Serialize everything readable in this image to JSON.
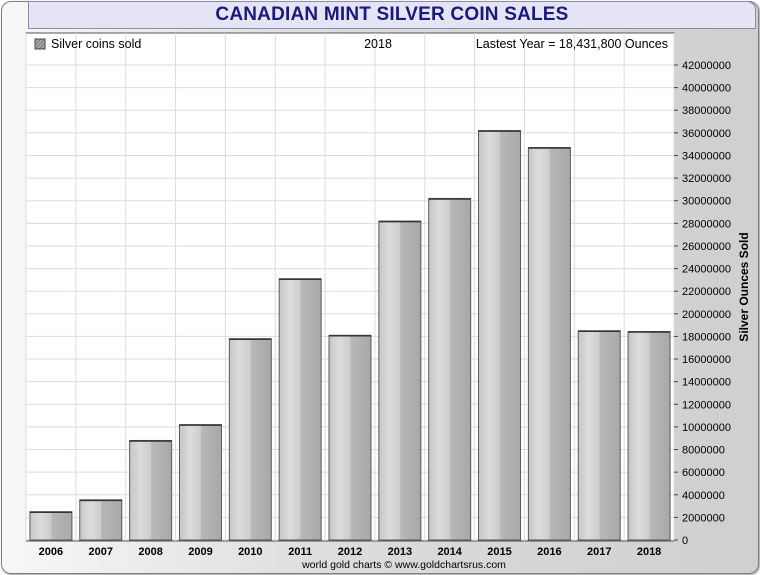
{
  "chart_data": {
    "type": "bar",
    "title": "CANADIAN MINT SILVER COIN SALES",
    "legend": "Silver coins sold",
    "header_year": "2018",
    "header_note": "Lastest Year = 18,431,800 Ounces",
    "categories": [
      "2006",
      "2007",
      "2008",
      "2009",
      "2010",
      "2011",
      "2012",
      "2013",
      "2014",
      "2015",
      "2016",
      "2017",
      "2018"
    ],
    "values": [
      2500000,
      3550000,
      8800000,
      10200000,
      17800000,
      23100000,
      18100000,
      28200000,
      30200000,
      36200000,
      34700000,
      18500000,
      18431800
    ],
    "ylabel": "Silver Ounces Sold",
    "xlabel": "",
    "ylim": [
      0,
      42000000
    ],
    "ytick_step": 2000000,
    "footer": "world gold charts © www.goldchartsrus.com",
    "colors": {
      "bar_light": "#d4d4d4",
      "bar_dark": "#a9a9a9",
      "bar_edge": "#5a5a5a",
      "grid": "#d6dde6",
      "title": "#1a1a7a"
    }
  }
}
